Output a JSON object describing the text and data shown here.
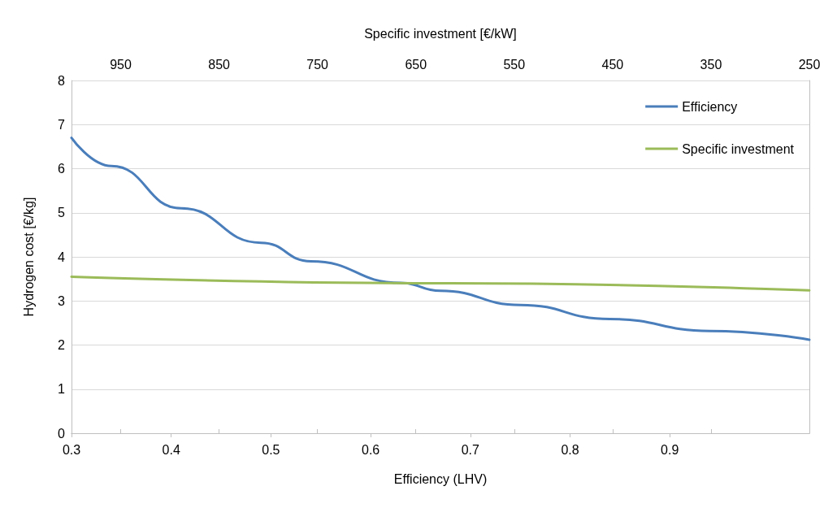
{
  "chart_data": {
    "type": "line",
    "xlabel": "Efficiency (LHV)",
    "ylabel": "Hydrogen cost [€/kg]",
    "x2label": "Specific investment [€/kW]",
    "xlim": [
      0.3,
      1.04
    ],
    "xticks": [
      0.3,
      0.4,
      0.5,
      0.6,
      0.7,
      0.8,
      0.9
    ],
    "x2lim": [
      1000,
      250
    ],
    "x2ticks": [
      950,
      850,
      750,
      650,
      550,
      450,
      350,
      250
    ],
    "ylim": [
      0,
      8
    ],
    "yticks": [
      0,
      1,
      2,
      3,
      4,
      5,
      6,
      7,
      8
    ],
    "grid": "y",
    "legend": "top right",
    "marker": "none",
    "line_style": "solid",
    "series": [
      {
        "name": "Efficiency",
        "color": "#4a7ebb",
        "x": [
          0.3,
          0.34,
          0.41,
          0.49,
          0.54,
          0.63,
          0.67,
          0.75,
          0.84,
          0.94,
          1.04
        ],
        "values": [
          6.7,
          6.06,
          5.1,
          4.32,
          3.9,
          3.41,
          3.23,
          2.91,
          2.59,
          2.32,
          2.12
        ]
      },
      {
        "name": "Specific investment",
        "color": "#9bbb59",
        "x": [
          0.3,
          0.68,
          1.04
        ],
        "values": [
          3.55,
          3.4,
          3.24
        ]
      }
    ]
  }
}
